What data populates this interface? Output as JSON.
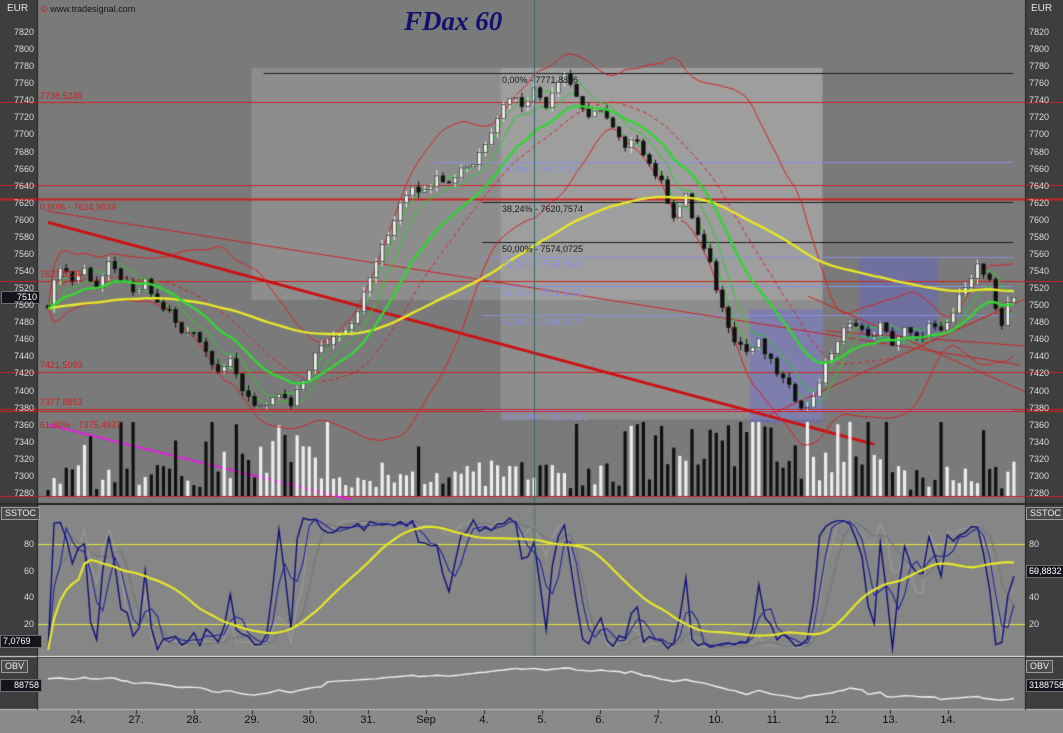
{
  "meta": {
    "title": "FDax 60",
    "copyright_symbol": "©",
    "copyright_text": "www.tradesignal.com",
    "currency": "EUR"
  },
  "axis": {
    "min": 7280,
    "max": 7820,
    "step": 20
  },
  "badges": {
    "current_price": "7510"
  },
  "sstoc": {
    "label": "SSTOC",
    "ticks": [
      80,
      60,
      40,
      20
    ],
    "upper": 80,
    "lower": 20,
    "range": [
      0,
      100
    ],
    "value_left": "7,0769",
    "value_right": "59,8832"
  },
  "obv": {
    "label": "OBV",
    "value_left": "88758",
    "value_right": "3188758"
  },
  "chart_data": {
    "type": "candlestick",
    "title": "FDax 60",
    "timeframe_minutes": 60,
    "ylim": [
      7280,
      7820
    ],
    "bar_count": 160,
    "bars_per_day": 10,
    "x_labels": [
      "24.",
      "27.",
      "28.",
      "29.",
      "30.",
      "31.",
      "Sep",
      "4.",
      "5.",
      "6.",
      "7.",
      "10.",
      "11.",
      "12.",
      "13.",
      "14."
    ],
    "crosshair_bar": 80,
    "price_anchors": [
      [
        0,
        7502
      ],
      [
        2,
        7548
      ],
      [
        4,
        7530
      ],
      [
        6,
        7542
      ],
      [
        8,
        7522
      ],
      [
        10,
        7546
      ],
      [
        12,
        7532
      ],
      [
        14,
        7512
      ],
      [
        16,
        7526
      ],
      [
        18,
        7502
      ],
      [
        20,
        7492
      ],
      [
        22,
        7466
      ],
      [
        24,
        7472
      ],
      [
        26,
        7446
      ],
      [
        28,
        7426
      ],
      [
        30,
        7432
      ],
      [
        32,
        7402
      ],
      [
        34,
        7386
      ],
      [
        36,
        7378
      ],
      [
        38,
        7396
      ],
      [
        40,
        7381
      ],
      [
        42,
        7412
      ],
      [
        44,
        7442
      ],
      [
        46,
        7456
      ],
      [
        48,
        7470
      ],
      [
        50,
        7481
      ],
      [
        52,
        7512
      ],
      [
        54,
        7552
      ],
      [
        56,
        7582
      ],
      [
        58,
        7622
      ],
      [
        60,
        7642
      ],
      [
        62,
        7632
      ],
      [
        64,
        7656
      ],
      [
        66,
        7642
      ],
      [
        68,
        7662
      ],
      [
        70,
        7666
      ],
      [
        72,
        7692
      ],
      [
        74,
        7722
      ],
      [
        76,
        7746
      ],
      [
        78,
        7736
      ],
      [
        80,
        7752
      ],
      [
        82,
        7736
      ],
      [
        84,
        7766
      ],
      [
        85,
        7772
      ],
      [
        87,
        7746
      ],
      [
        89,
        7716
      ],
      [
        91,
        7732
      ],
      [
        93,
        7706
      ],
      [
        95,
        7682
      ],
      [
        97,
        7696
      ],
      [
        99,
        7666
      ],
      [
        101,
        7642
      ],
      [
        103,
        7606
      ],
      [
        105,
        7626
      ],
      [
        107,
        7582
      ],
      [
        109,
        7546
      ],
      [
        111,
        7496
      ],
      [
        113,
        7462
      ],
      [
        115,
        7446
      ],
      [
        117,
        7456
      ],
      [
        119,
        7432
      ],
      [
        121,
        7412
      ],
      [
        123,
        7392
      ],
      [
        125,
        7378
      ],
      [
        127,
        7412
      ],
      [
        129,
        7446
      ],
      [
        131,
        7470
      ],
      [
        133,
        7481
      ],
      [
        135,
        7461
      ],
      [
        137,
        7476
      ],
      [
        139,
        7456
      ],
      [
        141,
        7471
      ],
      [
        143,
        7459
      ],
      [
        145,
        7476
      ],
      [
        147,
        7466
      ],
      [
        149,
        7491
      ],
      [
        151,
        7526
      ],
      [
        153,
        7546
      ],
      [
        155,
        7526
      ],
      [
        156,
        7491
      ],
      [
        157,
        7476
      ],
      [
        158,
        7506
      ],
      [
        159,
        7511
      ]
    ],
    "support_lines": [
      {
        "value": 7738.5249,
        "label": "7738,5249",
        "width": 1,
        "label_dy": -11
      },
      {
        "value": 7641.0,
        "label": "",
        "width": 1,
        "label_dy": 0
      },
      {
        "value": 7624.9639,
        "label": "0,00% - 7624,9639",
        "width": 2,
        "label_dy": 3
      },
      {
        "value": 7527.8228,
        "label": "7527,8228",
        "width": 1,
        "label_dy": -12
      },
      {
        "value": 7421.5093,
        "label": "7421,5093",
        "width": 1,
        "label_dy": -12
      },
      {
        "value": 7377.8853,
        "label": "7377,8853",
        "width": 1,
        "label_dy": -12
      },
      {
        "value": 7375.4937,
        "label": "61,80% - 7375,4937",
        "width": 1,
        "label_dy": 9
      },
      {
        "value": 7276.0,
        "label": "",
        "width": 1,
        "label_dy": 0
      }
    ],
    "fib_lines": [
      {
        "value": 7771.8896,
        "label": "0,00% - 7771,8896",
        "color": "dark",
        "start_bar": 36
      },
      {
        "value": 7667.7725,
        "label": "0,00% - 7667,7725",
        "color": "blue",
        "start_bar": 64
      },
      {
        "value": 7620.7574,
        "label": "38,24% - 7620,7574",
        "color": "dark",
        "start_bar": 72
      },
      {
        "value": 7574.0725,
        "label": "50,00% - 7574,0725",
        "color": "dark",
        "start_bar": 72
      },
      {
        "value": 7556.8628,
        "label": "38,20% - 7556,8628",
        "color": "blue",
        "start_bar": 72
      },
      {
        "value": 7522.6028,
        "label": "50,00% - 7522,6028",
        "color": "blue",
        "start_bar": 72
      },
      {
        "value": 7488.3427,
        "label": "61,80% - 7488,3427",
        "color": "blue",
        "start_bar": 72
      },
      {
        "value": 7377.4331,
        "label": "100,00% - 7377,4331",
        "color": "blue",
        "start_bar": 72
      }
    ],
    "trendlines": [
      {
        "p1": [
          0,
          7597
        ],
        "p2": [
          136,
          7337
        ],
        "color": "#cc1111",
        "width": 3
      },
      {
        "p1": [
          0,
          7610
        ],
        "p2": [
          160,
          7430
        ],
        "color": "#cc2222",
        "width": 1
      },
      {
        "p1": [
          125,
          7511
        ],
        "p2": [
          161,
          7398
        ],
        "color": "#cc2222",
        "width": 1
      },
      {
        "p1": [
          128,
          7470
        ],
        "p2": [
          161,
          7452
        ],
        "color": "#cc2222",
        "width": 1
      },
      {
        "p1": [
          118,
          7369
        ],
        "p2": [
          161,
          7508
        ],
        "color": "#cc2222",
        "width": 1
      },
      {
        "p1": [
          0,
          7360
        ],
        "p2": [
          50,
          7272
        ],
        "color": "#dd22dd",
        "width": 2
      }
    ],
    "zones": [
      {
        "b1": 116,
        "b2": 128,
        "p1": 7495,
        "p2": 7362
      },
      {
        "b1": 134,
        "b2": 147,
        "p1": 7556,
        "p2": 7458
      }
    ],
    "overlays": [
      {
        "b1": 34,
        "b2": 128,
        "p1": 7778,
        "p2": 7506
      },
      {
        "b1": 75,
        "b2": 128,
        "p1": 7778,
        "p2": 7366
      }
    ],
    "indicators": {
      "ema_fast": 15,
      "ema_slow": 80,
      "bollinger_period": 20,
      "bollinger_dev": 2,
      "channel_period": 4,
      "stoch_fast": 5,
      "stoch_mid": 12
    },
    "colors": {
      "up": "#ededed",
      "down": "#101010",
      "ma_fast": "#35d435",
      "ma_slow": "#e6e62a",
      "bollinger": "#d42222",
      "channel": "#2ecc2e",
      "support": "#cc2222",
      "fib_dark": "#1a1a1a",
      "fib_blue": "#8890e0",
      "zone": "rgba(92,92,235,0.32)",
      "overlay": "rgba(255,255,255,0.15)",
      "stoch_fast": "#0e0e7a",
      "stoch_fast2": "#24249a",
      "stoch_gray": "#9a9a9a",
      "stoch_gray2": "#767676",
      "stoch_signal": "#e6e62a",
      "obv_line": "#f0f0f0",
      "crosshair": "#2f6868"
    }
  }
}
